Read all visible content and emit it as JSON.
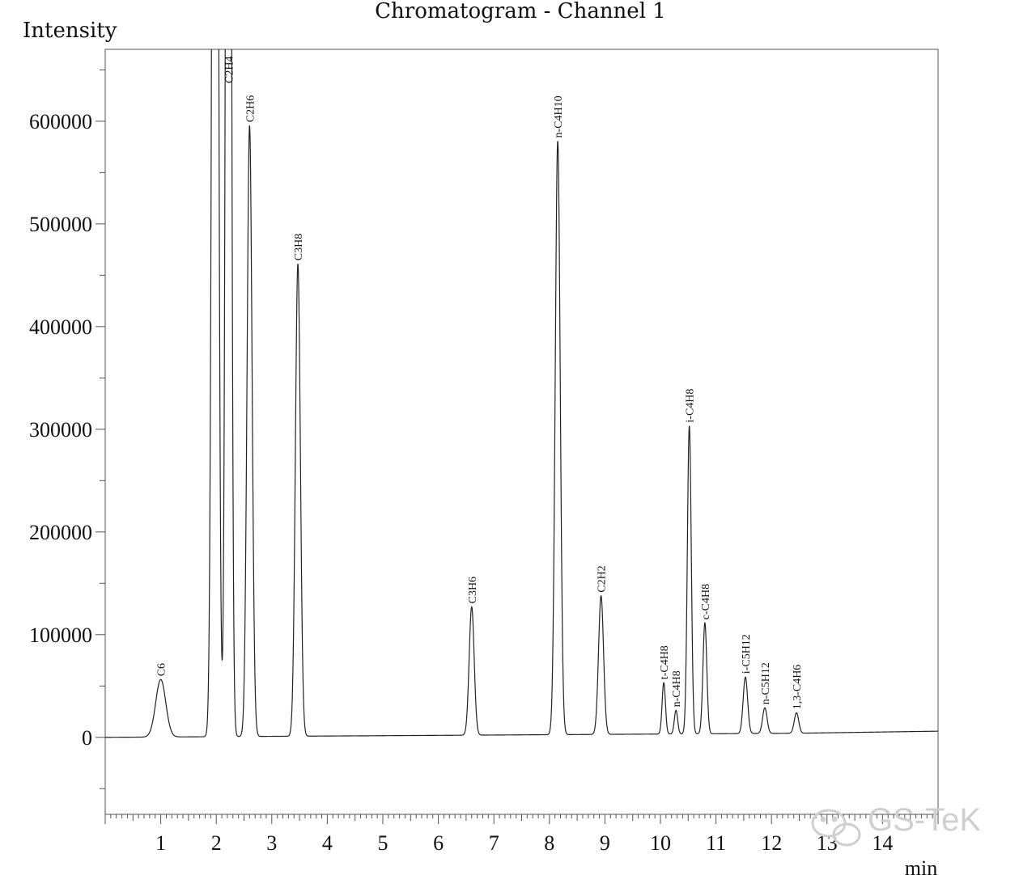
{
  "chart_data": {
    "type": "line",
    "title": "Chromatogram - Channel 1",
    "ylabel": "Intensity",
    "xlabel": "min",
    "xlim": [
      0,
      15
    ],
    "ylim": [
      -75000,
      670000
    ],
    "x_ticks": [
      1,
      2,
      3,
      4,
      5,
      6,
      7,
      8,
      9,
      10,
      11,
      12,
      13,
      14
    ],
    "y_ticks": [
      0,
      100000,
      200000,
      300000,
      400000,
      500000,
      600000
    ],
    "y_tick_labels": [
      "0",
      "100000",
      "200000",
      "300000",
      "400000",
      "500000",
      "600000"
    ],
    "grid": false,
    "baseline": [
      {
        "x": 0.0,
        "y": 0
      },
      {
        "x": 12.5,
        "y": 4000
      },
      {
        "x": 15.0,
        "y": 6000
      }
    ],
    "peaks": [
      {
        "label": "C6",
        "rt": 1.0,
        "height": 56000,
        "width": 0.09
      },
      {
        "label": "",
        "rt": 1.98,
        "height": 670000,
        "width": 0.045,
        "clipped": true
      },
      {
        "label": "C2H4",
        "rt": 2.22,
        "height": 670000,
        "width": 0.04,
        "clipped": true
      },
      {
        "label": "C2H6",
        "rt": 2.6,
        "height": 595000,
        "width": 0.045
      },
      {
        "label": "C3H8",
        "rt": 3.47,
        "height": 460000,
        "width": 0.045
      },
      {
        "label": "C3H6",
        "rt": 6.6,
        "height": 125000,
        "width": 0.045
      },
      {
        "label": "n-C4H10",
        "rt": 8.15,
        "height": 578000,
        "width": 0.045
      },
      {
        "label": "C2H2",
        "rt": 8.93,
        "height": 135000,
        "width": 0.045
      },
      {
        "label": "t-C4H8",
        "rt": 10.06,
        "height": 50000,
        "width": 0.03
      },
      {
        "label": "n-C4H8",
        "rt": 10.28,
        "height": 23000,
        "width": 0.03
      },
      {
        "label": "i-C4H8",
        "rt": 10.52,
        "height": 300000,
        "width": 0.035
      },
      {
        "label": "c-C4H8",
        "rt": 10.8,
        "height": 108000,
        "width": 0.035
      },
      {
        "label": "i-C5H12",
        "rt": 11.53,
        "height": 55000,
        "width": 0.04
      },
      {
        "label": "n-C5H12",
        "rt": 11.88,
        "height": 25000,
        "width": 0.04
      },
      {
        "label": "1,3-C4H6",
        "rt": 12.45,
        "height": 20000,
        "width": 0.04
      }
    ]
  },
  "watermark": "GS-TeK"
}
